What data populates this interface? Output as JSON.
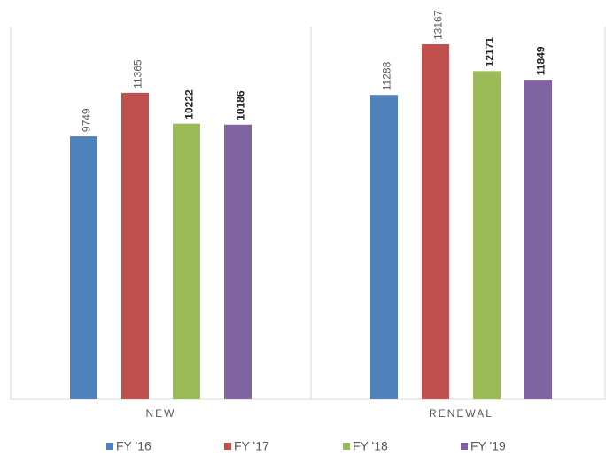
{
  "chart_data": {
    "type": "bar",
    "categories": [
      "NEW",
      "RENEWAL"
    ],
    "series": [
      {
        "name": "FY '16",
        "color": "#4f81bd",
        "values": [
          9749,
          11288
        ]
      },
      {
        "name": "FY '17",
        "color": "#c0504d",
        "values": [
          11365,
          13167
        ]
      },
      {
        "name": "FY '18",
        "color": "#9bbb59",
        "values": [
          10222,
          12171
        ]
      },
      {
        "name": "FY '19",
        "color": "#8064a2",
        "values": [
          10186,
          11849
        ]
      }
    ],
    "legend": "bottom"
  }
}
